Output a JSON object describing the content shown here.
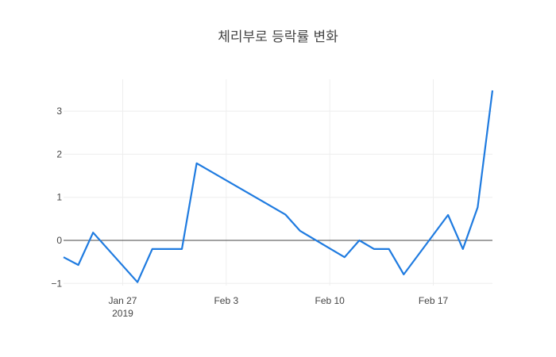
{
  "chart_data": {
    "type": "line",
    "title": "체리부로 등락률 변화",
    "xlabel": "",
    "ylabel": "",
    "x": [
      "2019-01-23",
      "2019-01-24",
      "2019-01-25",
      "2019-01-28",
      "2019-01-29",
      "2019-01-30",
      "2019-01-31",
      "2019-02-01",
      "2019-02-07",
      "2019-02-08",
      "2019-02-11",
      "2019-02-12",
      "2019-02-13",
      "2019-02-14",
      "2019-02-15",
      "2019-02-18",
      "2019-02-19",
      "2019-02-20",
      "2019-02-21"
    ],
    "series": [
      {
        "name": "등락률",
        "color": "#1f7be0",
        "values": [
          -0.39,
          -0.57,
          0.18,
          -0.97,
          -0.2,
          -0.2,
          -0.2,
          1.79,
          0.6,
          0.22,
          -0.39,
          0.0,
          -0.2,
          -0.2,
          -0.79,
          0.59,
          -0.2,
          0.77,
          3.48
        ]
      }
    ],
    "xticks": [
      {
        "date": "2019-01-27",
        "label": "Jan 27",
        "sublabel": "2019"
      },
      {
        "date": "2019-02-03",
        "label": "Feb 3",
        "sublabel": ""
      },
      {
        "date": "2019-02-10",
        "label": "Feb 10",
        "sublabel": ""
      },
      {
        "date": "2019-02-17",
        "label": "Feb 17",
        "sublabel": ""
      }
    ],
    "yticks": [
      {
        "value": 3,
        "label": "3"
      },
      {
        "value": 2,
        "label": "2"
      },
      {
        "value": 1,
        "label": "1"
      },
      {
        "value": 0,
        "label": "0"
      },
      {
        "value": -1,
        "label": "−1"
      }
    ],
    "xlim": [
      "2019-01-23",
      "2019-02-21"
    ],
    "ylim": [
      -1.05,
      3.72
    ],
    "grid": true,
    "zeroline": true,
    "legend": null
  }
}
